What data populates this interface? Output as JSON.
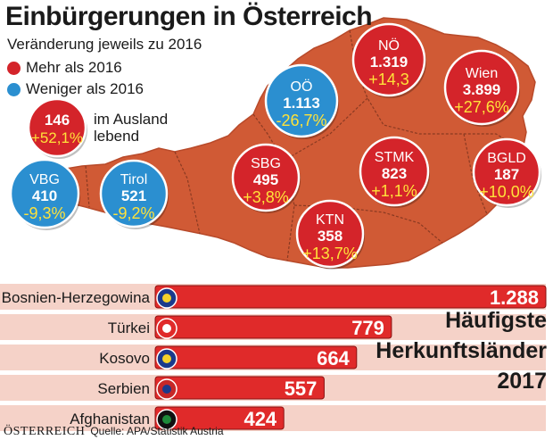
{
  "title": "Einbürgerungen in Österreich",
  "subtitle": "Veränderung jeweils zu 2016",
  "legend": {
    "more": "Mehr als 2016",
    "less": "Weniger als 2016"
  },
  "colors": {
    "more": "#d4242a",
    "less": "#2b8fd0",
    "map": "#d05a35",
    "bar": "#e02a2a",
    "bar_bg": "#f5d2c8"
  },
  "abroad": {
    "value": "146",
    "change": "+52,1%",
    "label_line1": "im Ausland",
    "label_line2": "lebend"
  },
  "regions": [
    {
      "name": "VBG",
      "value": "410",
      "change": "-9,3%",
      "trend": "less"
    },
    {
      "name": "Tirol",
      "value": "521",
      "change": "-9,2%",
      "trend": "less"
    },
    {
      "name": "SBG",
      "value": "495",
      "change": "+3,8%",
      "trend": "more"
    },
    {
      "name": "OÖ",
      "value": "1.113",
      "change": "-26,7%",
      "trend": "less"
    },
    {
      "name": "NÖ",
      "value": "1.319",
      "change": "+14,3",
      "trend": "more"
    },
    {
      "name": "Wien",
      "value": "3.899",
      "change": "+27,6%",
      "trend": "more"
    },
    {
      "name": "BGLD",
      "value": "187",
      "change": "+10,0%",
      "trend": "more"
    },
    {
      "name": "STMK",
      "value": "823",
      "change": "+1,1%",
      "trend": "more"
    },
    {
      "name": "KTN",
      "value": "358",
      "change": "+13,7%",
      "trend": "more"
    }
  ],
  "heading_lines": [
    "Häufigste",
    "Herkunftsländer",
    "2017"
  ],
  "chart_data": {
    "type": "bar",
    "orientation": "horizontal",
    "title": "Häufigste Herkunftsländer 2017",
    "categories": [
      "Bosnien-Herzegowina",
      "Türkei",
      "Kosovo",
      "Serbien",
      "Afghanistan"
    ],
    "values": [
      1288,
      779,
      664,
      557,
      424
    ],
    "value_labels": [
      "1.288",
      "779",
      "664",
      "557",
      "424"
    ],
    "xlim": [
      0,
      1288
    ]
  },
  "footer": {
    "brand": "ÖSTERREICH",
    "source": "Quelle: APA/Statistik Austria"
  }
}
